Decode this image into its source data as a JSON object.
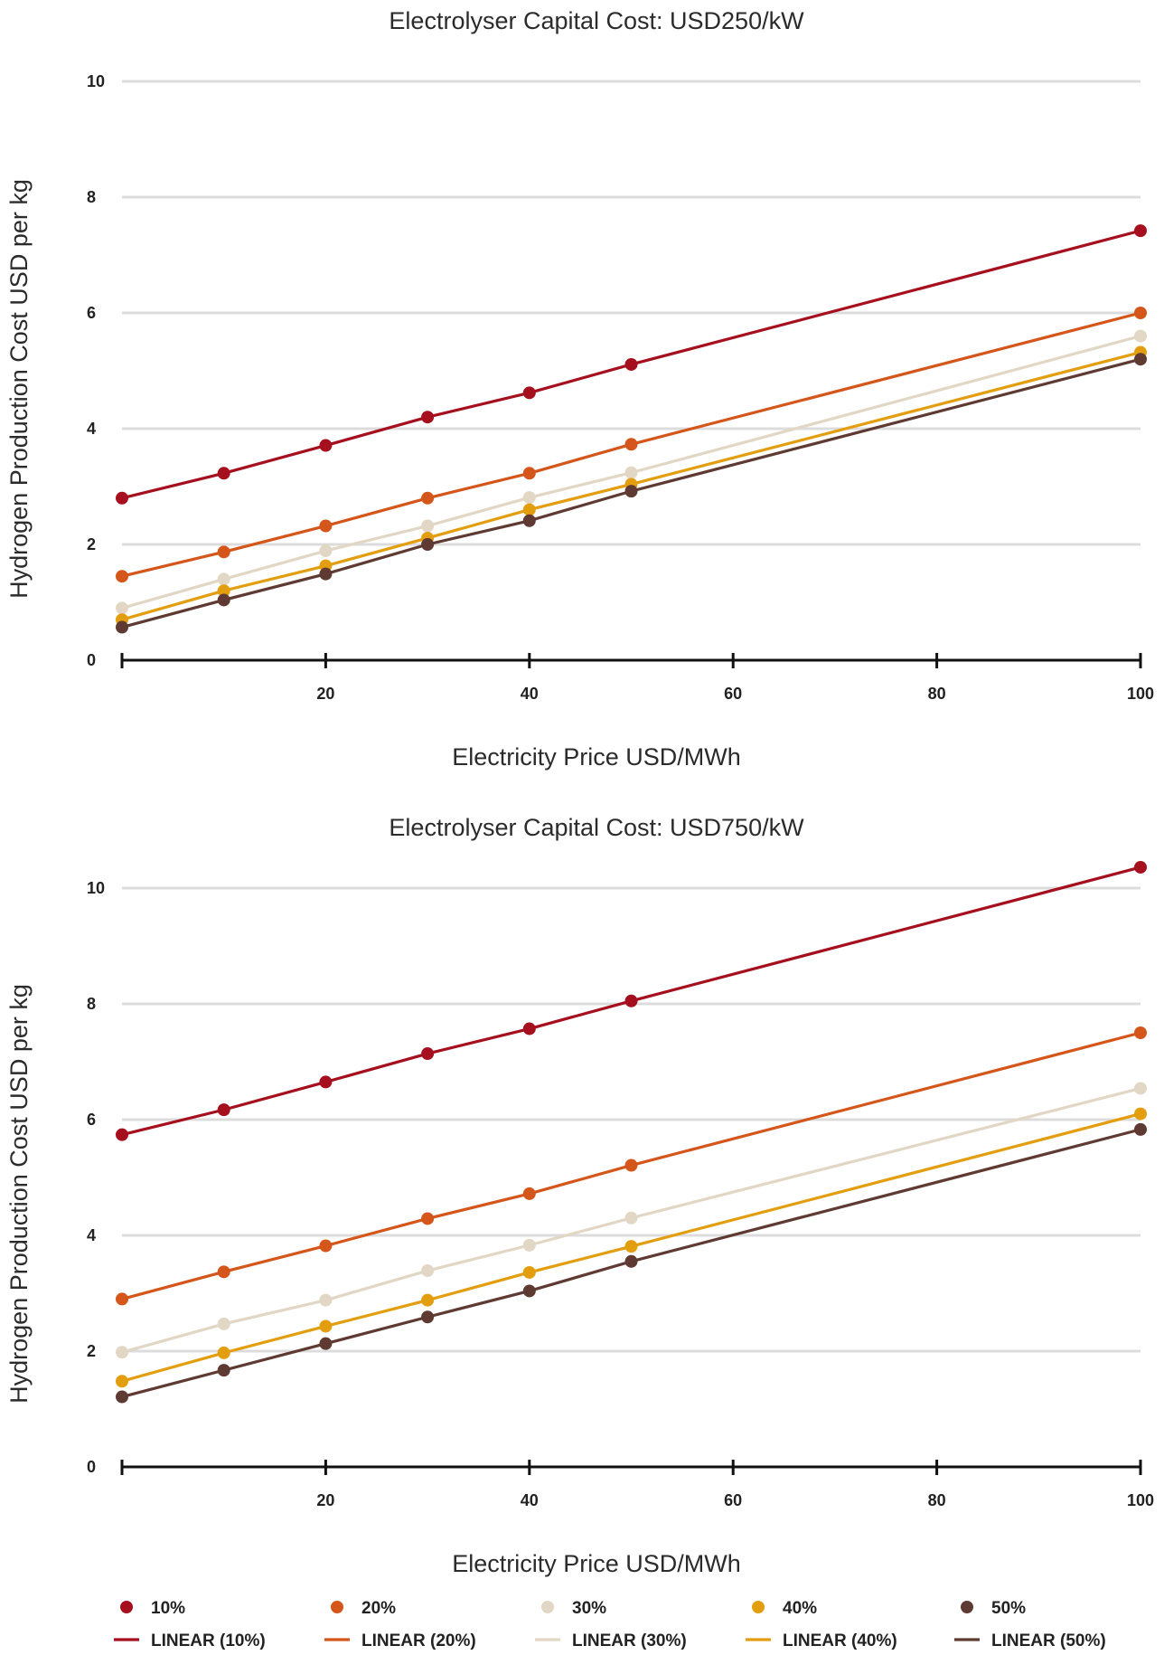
{
  "chart_data": [
    {
      "type": "line",
      "title": "Electrolyser Capital Cost: USD250/kW",
      "xlabel": "Electricity Price USD/MWh",
      "ylabel": "Hydrogen Production Cost USD per kg",
      "xlim": [
        0,
        100
      ],
      "ylim": [
        0,
        10
      ],
      "x_ticks": [
        20,
        40,
        60,
        80,
        100
      ],
      "y_ticks": [
        0,
        2,
        4,
        6,
        8,
        10
      ],
      "grid": true,
      "x": [
        0,
        10,
        20,
        30,
        40,
        50,
        100
      ],
      "series": [
        {
          "name": "10%",
          "color": "#A50F1E",
          "values": [
            2.8,
            3.23,
            3.71,
            4.2,
            4.62,
            5.11,
            7.42
          ]
        },
        {
          "name": "20%",
          "color": "#D4561A",
          "values": [
            1.45,
            1.87,
            2.32,
            2.8,
            3.23,
            3.73,
            6.0
          ]
        },
        {
          "name": "30%",
          "color": "#E2D6C4",
          "values": [
            0.9,
            1.4,
            1.89,
            2.32,
            2.81,
            3.24,
            5.6
          ]
        },
        {
          "name": "40%",
          "color": "#E29E0E",
          "values": [
            0.7,
            1.2,
            1.63,
            2.11,
            2.6,
            3.04,
            5.32
          ]
        },
        {
          "name": "50%",
          "color": "#5E3A32",
          "values": [
            0.57,
            1.04,
            1.49,
            2.0,
            2.41,
            2.92,
            5.2
          ]
        }
      ]
    },
    {
      "type": "line",
      "title": "Electrolyser Capital Cost: USD750/kW",
      "xlabel": "Electricity Price USD/MWh",
      "ylabel": "Hydrogen Production Cost USD per kg",
      "xlim": [
        0,
        100
      ],
      "ylim": [
        0,
        10
      ],
      "x_ticks": [
        20,
        40,
        60,
        80,
        100
      ],
      "y_ticks": [
        0,
        2,
        4,
        6,
        8,
        10
      ],
      "grid": true,
      "x": [
        0,
        10,
        20,
        30,
        40,
        50,
        100
      ],
      "series": [
        {
          "name": "10%",
          "color": "#A50F1E",
          "values": [
            5.74,
            6.17,
            6.65,
            7.14,
            7.57,
            8.05,
            10.36
          ]
        },
        {
          "name": "20%",
          "color": "#D4561A",
          "values": [
            2.9,
            3.37,
            3.82,
            4.29,
            4.72,
            5.21,
            7.5
          ]
        },
        {
          "name": "30%",
          "color": "#E2D6C4",
          "values": [
            1.98,
            2.47,
            2.88,
            3.39,
            3.83,
            4.3,
            6.54
          ]
        },
        {
          "name": "40%",
          "color": "#E29E0E",
          "values": [
            1.48,
            1.97,
            2.43,
            2.88,
            3.36,
            3.81,
            6.1
          ]
        },
        {
          "name": "50%",
          "color": "#5E3A32",
          "values": [
            1.21,
            1.67,
            2.13,
            2.59,
            3.04,
            3.55,
            5.83
          ]
        }
      ]
    }
  ],
  "legend": {
    "position": "bottom",
    "markers": [
      {
        "label": "10%",
        "color": "#A50F1E"
      },
      {
        "label": "20%",
        "color": "#D4561A"
      },
      {
        "label": "30%",
        "color": "#E2D6C4"
      },
      {
        "label": "40%",
        "color": "#E29E0E"
      },
      {
        "label": "50%",
        "color": "#5E3A32"
      }
    ],
    "lines": [
      {
        "label": "LINEAR (10%)",
        "color": "#A50F1E"
      },
      {
        "label": "LINEAR (20%)",
        "color": "#D4561A"
      },
      {
        "label": "LINEAR (30%)",
        "color": "#E2D6C4"
      },
      {
        "label": "LINEAR (40%)",
        "color": "#E29E0E"
      },
      {
        "label": "LINEAR (50%)",
        "color": "#5E3A32"
      }
    ]
  }
}
